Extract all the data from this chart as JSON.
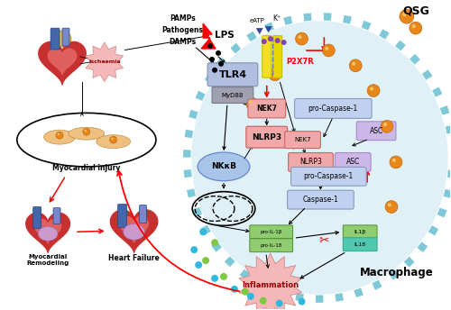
{
  "bg_color": "#ffffff",
  "macrophage_label": "Macrophage",
  "qsg_label": "QSG",
  "tlr4_label": "TLR4",
  "myd88_label": "MyD88",
  "nfkb_label": "NKκB",
  "nlrp3_label": "NLRP3",
  "nek7_label": "NEK7",
  "asc_label": "ASC",
  "procasp_label": "pro-Caspase-1",
  "casp_label": "Caspase-1",
  "p2x7r_label": "P2X7R",
  "lps_label": "LPS",
  "pamps_label": "PAMPs",
  "pathogens_label": "Pathogens",
  "damps_label": "DAMPs",
  "eatp_label": "eATP",
  "k_label": "K⁺",
  "inflammation_label": "Inflammation",
  "ischaemia_label": "Ischaemia",
  "myocardial_injury_label": "Myocardial injury",
  "myocardial_remodeling_label": "Myocardial\nRemodeling",
  "heart_failure_label": "Heart Failure",
  "il1b_label": "IL1β",
  "il18_label": "IL18",
  "pro_il1b_label": "pro·IL-1β",
  "pro_il18_label": "pro·IL-18",
  "cell_fill": "#daeef5",
  "cell_border": "#7ec8d8",
  "orange_color": "#e8861a",
  "orange_highlight": "#f5c060",
  "red_color": "#cc1111",
  "tlr4_fill": "#b0bfdf",
  "myd88_fill": "#a0a0b0",
  "nek7_fill": "#f0a8a8",
  "nlrp3_fill": "#f0a8a8",
  "procasp_fill": "#c0d0ef",
  "asc_fill": "#ccb8e8",
  "casp_fill": "#c0d0ef",
  "nfkb_fill": "#a8c4e8",
  "pro_il_fill": "#90cc70",
  "il1b_fill": "#90cc70",
  "il18_fill": "#50c8b0",
  "inflammation_fill": "#f5b8b8",
  "ischaemia_fill": "#f5b8b8",
  "cyan_dot": "#30b8e0",
  "green_dot": "#80c840"
}
